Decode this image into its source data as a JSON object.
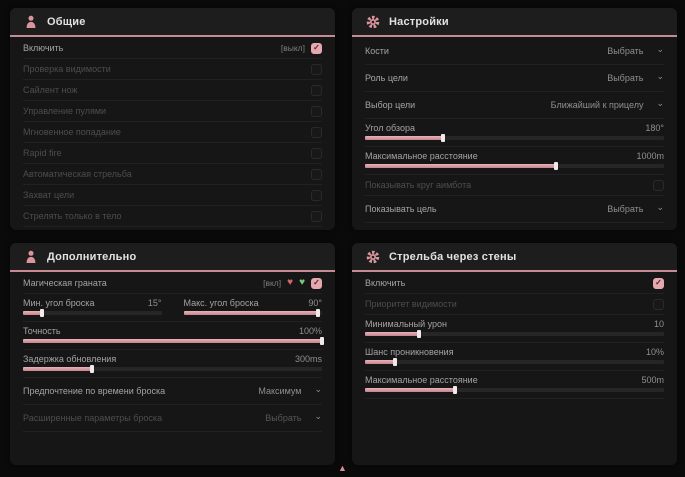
{
  "colors": {
    "accent": "#d9959d",
    "accent_light": "#e7b3ba",
    "panel_bg": "#161616",
    "header_bg": "#1d1d1d",
    "header_line": "#c58b93",
    "checkbox_on": "#e5a8af",
    "heart_red": "#d4656d",
    "heart_green": "#7cc47f"
  },
  "icons": {
    "check": "✓",
    "chevron": "⌄",
    "heart": "♥",
    "cursor": "▲"
  },
  "panels": [
    {
      "id": "general",
      "title": "Общие",
      "icon": "person-icon",
      "rows": [
        {
          "type": "toggle",
          "label": "Включить",
          "hint": "[выкл]",
          "checked": true
        },
        {
          "type": "toggle",
          "label": "Проверка видимости",
          "dim": true,
          "checked": false
        },
        {
          "type": "toggle",
          "label": "Сайлент нож",
          "dim": true,
          "checked": false
        },
        {
          "type": "toggle",
          "label": "Управление пулями",
          "dim": true,
          "checked": false
        },
        {
          "type": "toggle",
          "label": "Мгновенное попадание",
          "dim": true,
          "checked": false
        },
        {
          "type": "toggle",
          "label": "Rapid fire",
          "dim": true,
          "checked": false
        },
        {
          "type": "toggle",
          "label": "Автоматическая стрельба",
          "dim": true,
          "checked": false
        },
        {
          "type": "toggle",
          "label": "Захват цели",
          "dim": true,
          "checked": false
        },
        {
          "type": "toggle",
          "label": "Стрелять только в тело",
          "dim": true,
          "checked": false
        }
      ]
    },
    {
      "id": "settings",
      "title": "Настройки",
      "icon": "gear-icon",
      "rows": [
        {
          "type": "select",
          "label": "Кости",
          "value": "Выбрать"
        },
        {
          "type": "select",
          "label": "Роль цели",
          "value": "Выбрать"
        },
        {
          "type": "select",
          "label": "Выбор цели",
          "value": "Ближайший к прицелу"
        },
        {
          "type": "slider",
          "label": "Угол обзора",
          "value": "180°",
          "fill": 26
        },
        {
          "type": "slider",
          "label": "Максимальное расстояние",
          "value": "1000m",
          "fill": 64
        },
        {
          "type": "toggle",
          "label": "Показывать круг аимбота",
          "dim": true,
          "checked": false
        },
        {
          "type": "select",
          "label": "Показывать цель",
          "value": "Выбрать"
        }
      ]
    },
    {
      "id": "extra",
      "title": "Дополнительно",
      "icon": "person-icon",
      "rows": [
        {
          "type": "toggle",
          "label": "Магическая граната",
          "hint": "[вкл]",
          "hearts": true,
          "checked": true
        },
        {
          "type": "pair",
          "left": {
            "label": "Мин. угол броска",
            "value": "15°",
            "fill": 14
          },
          "right": {
            "label": "Макс. угол броска",
            "value": "90°",
            "fill": 97
          }
        },
        {
          "type": "slider",
          "label": "Точность",
          "value": "100%",
          "fill": 100
        },
        {
          "type": "slider",
          "label": "Задержка обновления",
          "value": "300ms",
          "fill": 23
        },
        {
          "type": "select",
          "label": "Предпочтение по времени броска",
          "value": "Максимум"
        },
        {
          "type": "select",
          "label": "Расширенные параметры броска",
          "value": "Выбрать",
          "dim": true
        }
      ]
    },
    {
      "id": "wallbang",
      "title": "Стрельба через стены",
      "icon": "gear-icon",
      "rows": [
        {
          "type": "toggle",
          "label": "Включить",
          "checked": true
        },
        {
          "type": "toggle",
          "label": "Приоритет видимости",
          "dim": true,
          "checked": false
        },
        {
          "type": "slider",
          "label": "Минимальный урон",
          "value": "10",
          "fill": 18
        },
        {
          "type": "slider",
          "label": "Шанс проникновения",
          "value": "10%",
          "fill": 10
        },
        {
          "type": "slider",
          "label": "Максимальное расстояние",
          "value": "500m",
          "fill": 30
        }
      ]
    }
  ]
}
